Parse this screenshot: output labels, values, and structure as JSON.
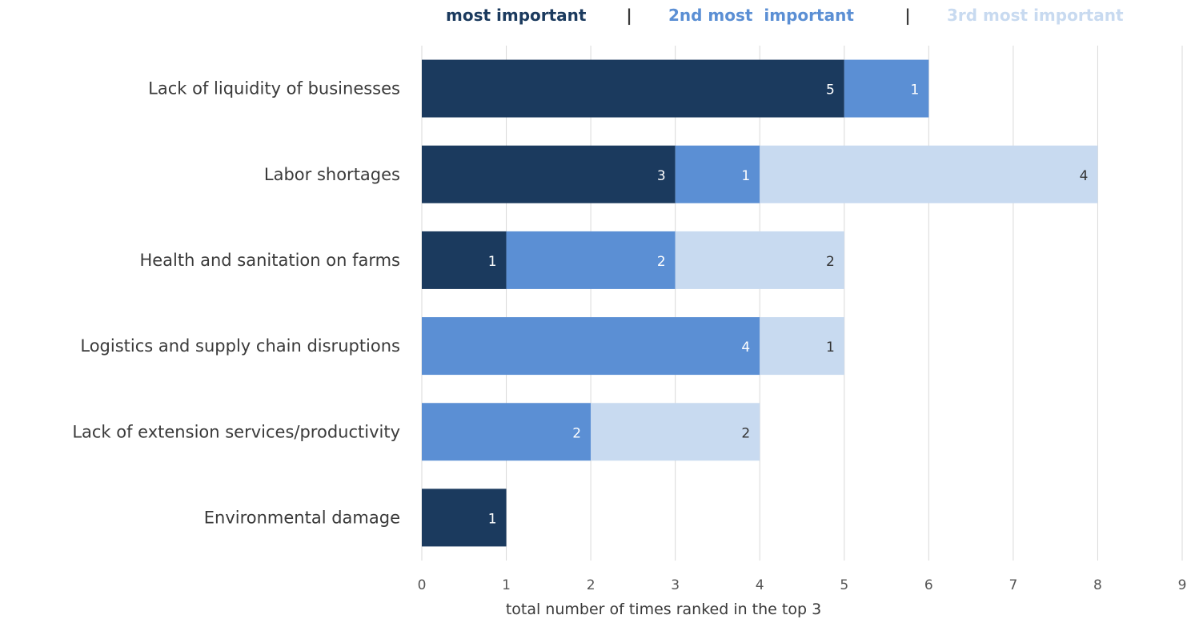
{
  "chart_data": {
    "type": "bar",
    "orientation": "horizontal",
    "stacked": true,
    "categories": [
      "Lack of liquidity of businesses",
      "Labor shortages",
      "Health and sanitation on farms",
      "Logistics and supply chain disruptions",
      "Lack of extension services/productivity",
      "Environmental damage"
    ],
    "series": [
      {
        "name": "most important",
        "color": "#1b3a5e",
        "label_color": "#ffffff",
        "values": [
          5,
          3,
          1,
          0,
          0,
          1
        ]
      },
      {
        "name": "2nd most  important",
        "color": "#5b8fd4",
        "label_color": "#ffffff",
        "values": [
          1,
          1,
          2,
          4,
          2,
          0
        ]
      },
      {
        "name": "3rd most important",
        "color": "#c8daf0",
        "label_color": "#333333",
        "values": [
          0,
          4,
          2,
          1,
          2,
          0
        ]
      }
    ],
    "xlabel": "total number of times ranked in the top 3",
    "xlim": [
      0,
      9
    ],
    "xticks": [
      "0",
      "1",
      "2",
      "3",
      "4",
      "5",
      "6",
      "7",
      "8",
      "9"
    ],
    "grid": true,
    "legend_position": "top",
    "legend_separator": "|"
  }
}
